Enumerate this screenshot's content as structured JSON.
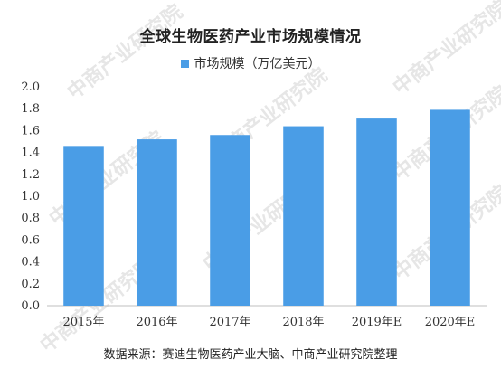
{
  "chart_data": {
    "type": "bar",
    "title": "全球生物医药产业市场规模情况",
    "series": [
      {
        "name": "市场规模（万亿美元）",
        "color": "#4a9de6",
        "values": [
          1.46,
          1.52,
          1.56,
          1.64,
          1.71,
          1.79
        ]
      }
    ],
    "categories": [
      "2015年",
      "2016年",
      "2017年",
      "2018年",
      "2019年E",
      "2020年E"
    ],
    "xlabel": "",
    "ylabel": "",
    "ylim": [
      0,
      2.0
    ],
    "yticks": [
      "0.0",
      "0.2",
      "0.4",
      "0.6",
      "0.8",
      "1.0",
      "1.2",
      "1.4",
      "1.6",
      "1.8",
      "2.0"
    ],
    "grid": false,
    "legend": "top-center"
  },
  "source": "数据来源：赛迪生物医药产业大脑、中商产业研究院整理",
  "watermark": "中商产业研究院"
}
